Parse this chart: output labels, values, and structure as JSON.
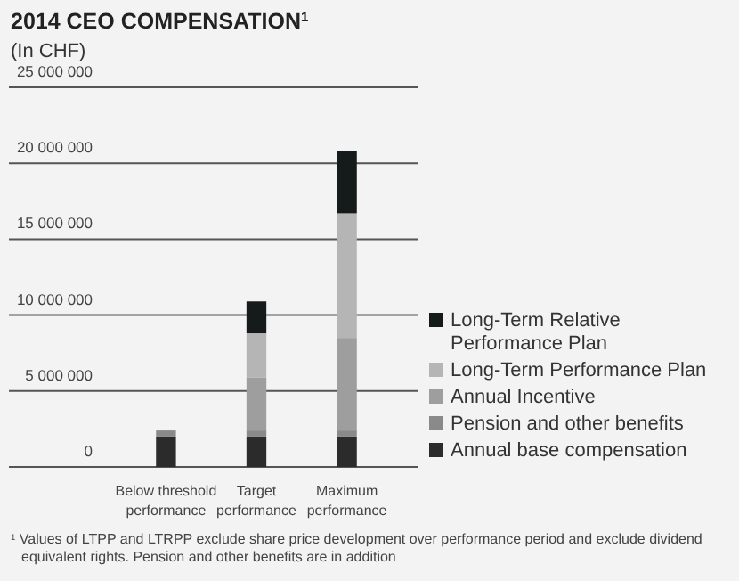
{
  "chart_data": {
    "type": "bar",
    "title": "2014 CEO COMPENSATION$^{1}$",
    "subtitle": "(In CHF)",
    "categories": [
      "Below threshold performance",
      "Target performance",
      "Maximum performance"
    ],
    "stacked": true,
    "series": [
      {
        "name": "Annual base compensation",
        "color": "#2b2b2b",
        "values": [
          2000000,
          2000000,
          2000000
        ]
      },
      {
        "name": "Pension and other benefits",
        "color": "#8a8a8a",
        "values": [
          400000,
          400000,
          400000
        ]
      },
      {
        "name": "Annual Incentive",
        "color": "#9e9e9e",
        "values": [
          null,
          3500000,
          6100000
        ]
      },
      {
        "name": "Long-Term Performance Plan",
        "color": "#b5b5b5",
        "values": [
          null,
          2900000,
          8200000
        ]
      },
      {
        "name": "Long-Term Relative Performance Plan",
        "color": "#151b1b",
        "values": [
          null,
          2100000,
          4100000
        ]
      }
    ],
    "ylim": [
      0,
      25000000
    ],
    "yticks": [
      0,
      {
        "value": 5000000,
        "label": "5 000 000"
      },
      {
        "value": 10000000,
        "label": "10 000 000"
      },
      {
        "value": 15000000,
        "label": "15 000 000"
      },
      {
        "value": 20000000,
        "label": "20 000 000"
      },
      {
        "value": 25000000,
        "label": "25 000 000"
      }
    ],
    "grid": "y",
    "legend": "right",
    "annotations": [
      "$^{1}$ Values of LTPP and LTRPP exclude share price development over performance period and exclude dividend equivalent rights. Pension and other benefits are in addition"
    ]
  }
}
